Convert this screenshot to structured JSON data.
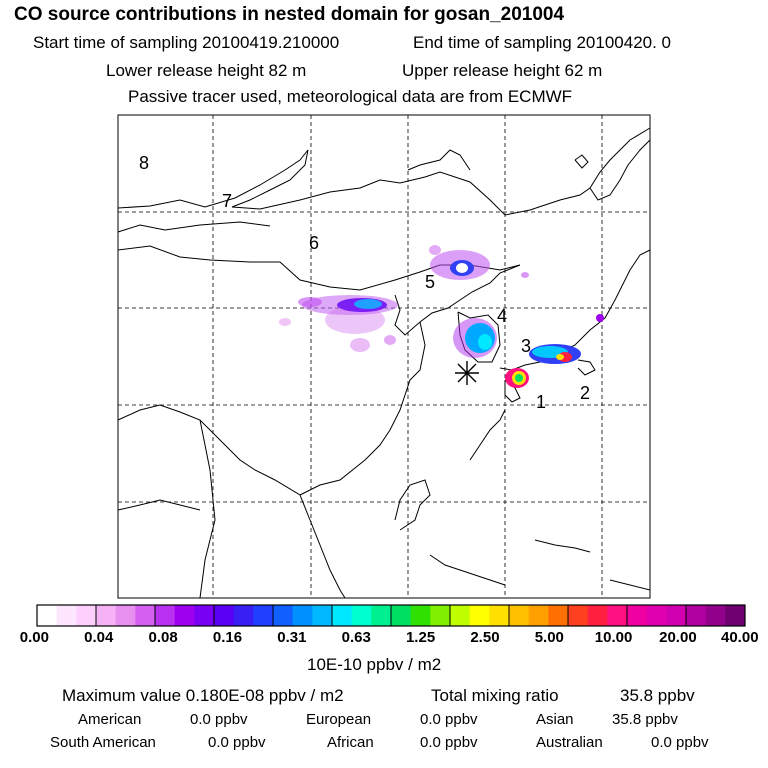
{
  "header": {
    "title": "CO  source contributions in nested domain for gosan_201004",
    "start_label": "Start time of sampling 20100419.210000",
    "end_label": "End time of sampling 20100420.     0",
    "lower_release": "Lower release height   82 m",
    "upper_release": "Upper release height   62 m",
    "tracer_note": "Passive tracer used, meteorological data are from ECMWF"
  },
  "map": {
    "region_labels": [
      "1",
      "2",
      "3",
      "4",
      "5",
      "6",
      "7",
      "8"
    ],
    "receptor_symbol": "✳"
  },
  "colorbar": {
    "tick_labels": [
      "0.00",
      "0.04",
      "0.08",
      "0.16",
      "0.31",
      "0.63",
      "1.25",
      "2.50",
      "5.00",
      "10.00",
      "20.00",
      "40.00"
    ],
    "unit": "10E-10 ppbv / m2",
    "colors": [
      "#ffffff",
      "#ffe6ff",
      "#fccffc",
      "#f5b3f5",
      "#e890f0",
      "#d45ff0",
      "#b830f0",
      "#a000f0",
      "#7a00f5",
      "#5a00f5",
      "#3820f5",
      "#2040ff",
      "#1060ff",
      "#0090ff",
      "#00b8ff",
      "#00e8ff",
      "#00ffd0",
      "#00f090",
      "#00e060",
      "#30e000",
      "#80f000",
      "#c0ff00",
      "#ffff00",
      "#ffe000",
      "#ffc000",
      "#ffa000",
      "#ff7000",
      "#ff4020",
      "#ff2040",
      "#ff1080",
      "#f000a0",
      "#e000b0",
      "#d000b0",
      "#b000a0",
      "#90008a",
      "#700070"
    ]
  },
  "stats": {
    "max_label": "Maximum value  0.180E-08 ppbv / m2",
    "total_label": "Total mixing ratio",
    "total_value": "35.8 ppbv",
    "rows": [
      {
        "name": "American",
        "value": "0.0 ppbv"
      },
      {
        "name": "European",
        "value": "0.0 ppbv"
      },
      {
        "name": "Asian",
        "value": "35.8 ppbv"
      },
      {
        "name": "South American",
        "value": "0.0 ppbv"
      },
      {
        "name": "African",
        "value": "0.0 ppbv"
      },
      {
        "name": "Australian",
        "value": "0.0 ppbv"
      }
    ]
  }
}
